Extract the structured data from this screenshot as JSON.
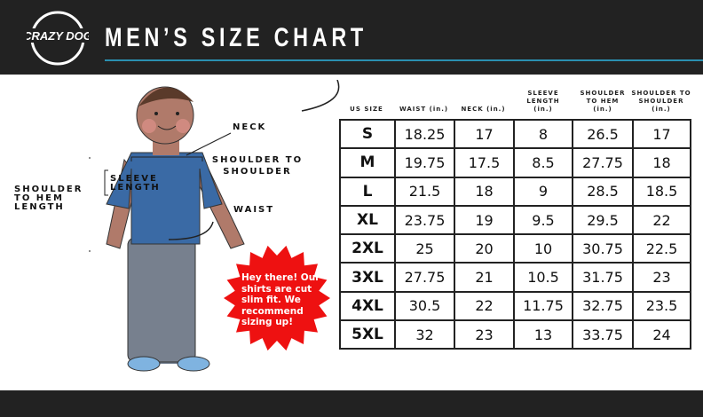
{
  "header": {
    "title": "MEN’S SIZE CHART",
    "logo_text": "CRAZY DOG T-Shirts"
  },
  "colors": {
    "header_bg": "#222222",
    "accent": "#2a8fb0",
    "callout": "#ee1111",
    "shirt": "#3a6aa5"
  },
  "figure_labels": {
    "neck": "NECK",
    "shoulder_to_shoulder": "SHOULDER TO SHOULDER",
    "sleeve_length": "SLEEVE LENGTH",
    "waist": "WAIST",
    "shoulder_to_hem": "SHOULDER TO HEM LENGTH"
  },
  "callout": "Hey there! Our shirts are cut slim fit. We recommend sizing up!",
  "table": {
    "headers": [
      "US SIZE",
      "WAIST (in.)",
      "NECK (in.)",
      "SLEEVE LENGTH (in.)",
      "SHOULDER TO HEM (in.)",
      "SHOULDER TO SHOULDER (in.)"
    ],
    "rows": [
      [
        "S",
        "18.25",
        "17",
        "8",
        "26.5",
        "17"
      ],
      [
        "M",
        "19.75",
        "17.5",
        "8.5",
        "27.75",
        "18"
      ],
      [
        "L",
        "21.5",
        "18",
        "9",
        "28.5",
        "18.5"
      ],
      [
        "XL",
        "23.75",
        "19",
        "9.5",
        "29.5",
        "22"
      ],
      [
        "2XL",
        "25",
        "20",
        "10",
        "30.75",
        "22.5"
      ],
      [
        "3XL",
        "27.75",
        "21",
        "10.5",
        "31.75",
        "23"
      ],
      [
        "4XL",
        "30.5",
        "22",
        "11.75",
        "32.75",
        "23.5"
      ],
      [
        "5XL",
        "32",
        "23",
        "13",
        "33.75",
        "24"
      ]
    ]
  }
}
